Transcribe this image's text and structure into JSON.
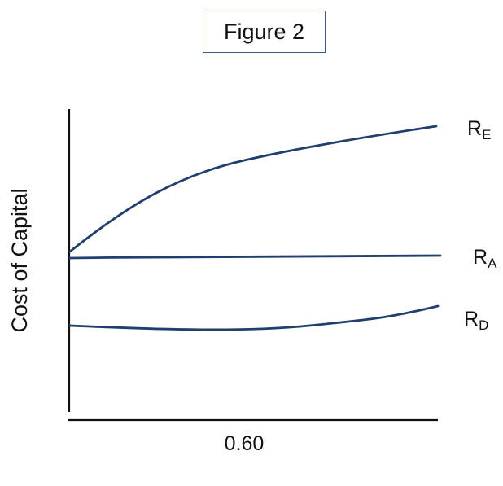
{
  "chart_data": {
    "type": "line",
    "title": "Figure 2",
    "xlabel": "",
    "ylabel": "Cost of Capital",
    "x_ticks": [
      {
        "value": 0.6,
        "label": "0.60"
      }
    ],
    "series": [
      {
        "key": "RE",
        "name": "R",
        "subscript": "E",
        "color": "#1f3f6e"
      },
      {
        "key": "RA",
        "name": "R",
        "subscript": "A",
        "color": "#1f3f6e"
      },
      {
        "key": "RD",
        "name": "R",
        "subscript": "D",
        "color": "#1f3f6e"
      }
    ],
    "grid": false,
    "legend": "none"
  }
}
